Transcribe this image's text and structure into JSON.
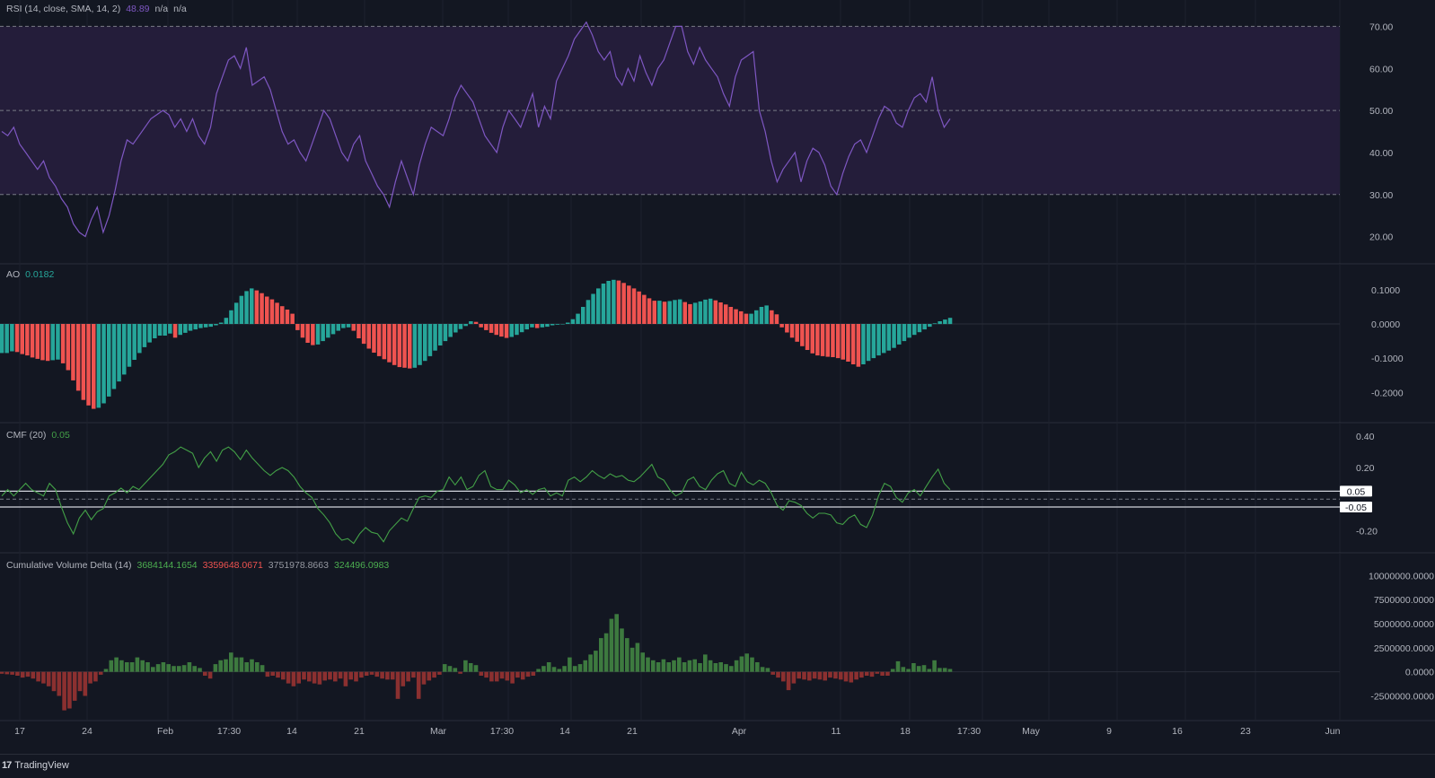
{
  "colors": {
    "background": "#131722",
    "grid": "#1e222d",
    "rsi_line": "#7e57c2",
    "rsi_band": "#241d3a",
    "ao_up": "#26a69a",
    "ao_down": "#ef5350",
    "cmf_line": "#43a047",
    "cvd_up": "#3d7a3f",
    "cvd_down": "#8b3030",
    "axis_text": "#b2b5be"
  },
  "legends": {
    "rsi": {
      "name": "RSI (14, close, SMA, 14, 2)",
      "value": "48.89",
      "v2": "n/a",
      "v3": "n/a"
    },
    "ao": {
      "name": "AO",
      "value": "0.0182"
    },
    "cmf": {
      "name": "CMF (20)",
      "value": "0.05"
    },
    "cvd": {
      "name": "Cumulative Volume Delta (14)",
      "v1": "3684144.1654",
      "v2": "3359648.0671",
      "v3": "3751978.8663",
      "v4": "324496.0983"
    }
  },
  "x_axis": {
    "labels": [
      "17",
      "24",
      "Feb",
      "17:30",
      "14",
      "21",
      "Mar",
      "17:30",
      "14",
      "21",
      "Apr",
      "11",
      "18",
      "17:30",
      "May",
      "9",
      "16",
      "23",
      "Jun"
    ]
  },
  "chart_data": [
    {
      "type": "line",
      "title": "RSI (14, close, SMA, 14, 2)",
      "ylim": [
        15,
        75
      ],
      "ticks": [
        "70.00",
        "60.00",
        "50.00",
        "40.00",
        "30.00",
        "20.00"
      ],
      "reference_levels": [
        70,
        50,
        30
      ],
      "band": [
        30,
        70
      ],
      "series": [
        {
          "values": [
            45,
            44,
            46,
            42,
            40,
            38,
            36,
            38,
            34,
            32,
            29,
            27,
            23,
            21,
            20,
            24,
            27,
            21,
            25,
            31,
            38,
            43,
            42,
            44,
            46,
            48,
            49,
            50,
            49,
            46,
            48,
            45,
            48,
            44,
            42,
            46,
            54,
            58,
            62,
            63,
            60,
            65,
            56,
            57,
            58,
            55,
            50,
            45,
            42,
            43,
            40,
            38,
            42,
            46,
            50,
            48,
            44,
            40,
            38,
            42,
            44,
            38,
            35,
            32,
            30,
            27,
            33,
            38,
            34,
            30,
            37,
            42,
            46,
            45,
            44,
            48,
            53,
            56,
            54,
            52,
            48,
            44,
            42,
            40,
            46,
            50,
            48,
            46,
            50,
            54,
            46,
            51,
            48,
            57,
            60,
            63,
            67,
            69,
            71,
            68,
            64,
            62,
            64,
            58,
            56,
            60,
            57,
            63,
            59,
            56,
            60,
            62,
            66,
            70,
            70,
            64,
            61,
            65,
            62,
            60,
            58,
            54,
            51,
            58,
            62,
            63,
            64,
            50,
            45,
            38,
            33,
            36,
            38,
            40,
            33,
            38,
            41,
            40,
            37,
            32,
            30,
            35,
            39,
            42,
            43,
            40,
            44,
            48,
            51,
            50,
            47,
            46,
            50,
            53,
            54,
            52,
            58,
            50,
            46,
            48
          ]
        }
      ]
    },
    {
      "type": "bar",
      "title": "AO",
      "ylim": [
        -0.27,
        0.16
      ],
      "ticks": [
        "0.1000",
        "0.0000",
        "-0.1000",
        "-0.2000"
      ],
      "series": [
        {
          "values": [
            -0.085,
            -0.085,
            -0.08,
            -0.082,
            -0.088,
            -0.092,
            -0.098,
            -0.102,
            -0.106,
            -0.108,
            -0.106,
            -0.104,
            -0.115,
            -0.135,
            -0.165,
            -0.195,
            -0.222,
            -0.238,
            -0.248,
            -0.245,
            -0.232,
            -0.212,
            -0.19,
            -0.168,
            -0.148,
            -0.125,
            -0.105,
            -0.085,
            -0.068,
            -0.054,
            -0.042,
            -0.034,
            -0.034,
            -0.028,
            -0.04,
            -0.032,
            -0.026,
            -0.02,
            -0.016,
            -0.012,
            -0.01,
            -0.008,
            -0.004,
            0.004,
            0.018,
            0.04,
            0.062,
            0.082,
            0.096,
            0.104,
            0.098,
            0.09,
            0.08,
            0.072,
            0.062,
            0.052,
            0.042,
            0.03,
            -0.018,
            -0.04,
            -0.055,
            -0.062,
            -0.06,
            -0.05,
            -0.04,
            -0.03,
            -0.02,
            -0.012,
            -0.01,
            -0.02,
            -0.042,
            -0.058,
            -0.072,
            -0.084,
            -0.094,
            -0.103,
            -0.112,
            -0.12,
            -0.126,
            -0.128,
            -0.13,
            -0.128,
            -0.12,
            -0.108,
            -0.094,
            -0.078,
            -0.063,
            -0.05,
            -0.038,
            -0.025,
            -0.015,
            -0.006,
            0.008,
            0.006,
            -0.01,
            -0.018,
            -0.026,
            -0.032,
            -0.037,
            -0.041,
            -0.038,
            -0.032,
            -0.024,
            -0.016,
            -0.01,
            -0.012,
            -0.01,
            -0.008,
            -0.004,
            -0.002,
            0.0,
            0.004,
            0.014,
            0.03,
            0.05,
            0.07,
            0.088,
            0.104,
            0.118,
            0.126,
            0.129,
            0.127,
            0.12,
            0.112,
            0.104,
            0.095,
            0.085,
            0.075,
            0.068,
            0.068,
            0.065,
            0.067,
            0.07,
            0.072,
            0.064,
            0.058,
            0.062,
            0.066,
            0.071,
            0.074,
            0.069,
            0.063,
            0.057,
            0.05,
            0.043,
            0.037,
            0.03,
            0.03,
            0.04,
            0.05,
            0.054,
            0.04,
            0.028,
            -0.01,
            -0.025,
            -0.04,
            -0.052,
            -0.065,
            -0.076,
            -0.086,
            -0.092,
            -0.094,
            -0.096,
            -0.097,
            -0.1,
            -0.104,
            -0.11,
            -0.118,
            -0.125,
            -0.118,
            -0.108,
            -0.1,
            -0.092,
            -0.085,
            -0.078,
            -0.07,
            -0.06,
            -0.05,
            -0.04,
            -0.032,
            -0.024,
            -0.016,
            -0.008,
            0.002,
            0.008,
            0.013,
            0.018
          ]
        }
      ]
    },
    {
      "type": "line",
      "title": "CMF (20)",
      "ylim": [
        -0.3,
        0.45
      ],
      "ticks": [
        "0.40",
        "0.20",
        "0.05",
        "-0.05",
        "-0.20"
      ],
      "reference_levels": [
        0.05,
        -0.05
      ],
      "series": [
        {
          "values": [
            0.02,
            0.06,
            0.02,
            0.06,
            0.1,
            0.06,
            0.04,
            0.02,
            0.1,
            0.06,
            -0.05,
            -0.15,
            -0.22,
            -0.12,
            -0.07,
            -0.13,
            -0.08,
            -0.06,
            0.02,
            0.04,
            0.07,
            0.04,
            0.08,
            0.06,
            0.1,
            0.14,
            0.18,
            0.22,
            0.28,
            0.3,
            0.33,
            0.31,
            0.29,
            0.2,
            0.26,
            0.3,
            0.24,
            0.31,
            0.33,
            0.3,
            0.25,
            0.31,
            0.26,
            0.22,
            0.18,
            0.15,
            0.18,
            0.2,
            0.18,
            0.14,
            0.08,
            0.04,
            0.01,
            -0.06,
            -0.1,
            -0.15,
            -0.22,
            -0.26,
            -0.25,
            -0.28,
            -0.22,
            -0.18,
            -0.21,
            -0.22,
            -0.27,
            -0.2,
            -0.16,
            -0.12,
            -0.14,
            -0.06,
            0.01,
            0.02,
            0.01,
            0.05,
            0.06,
            0.14,
            0.09,
            0.14,
            0.06,
            0.08,
            0.15,
            0.18,
            0.08,
            0.06,
            0.06,
            0.12,
            0.09,
            0.04,
            0.06,
            0.03,
            0.06,
            0.07,
            0.02,
            0.04,
            0.02,
            0.12,
            0.14,
            0.11,
            0.14,
            0.18,
            0.15,
            0.13,
            0.16,
            0.14,
            0.15,
            0.12,
            0.11,
            0.14,
            0.18,
            0.22,
            0.14,
            0.12,
            0.06,
            0.02,
            0.04,
            0.12,
            0.14,
            0.08,
            0.06,
            0.12,
            0.16,
            0.18,
            0.1,
            0.08,
            0.17,
            0.11,
            0.09,
            0.12,
            0.1,
            0.04,
            -0.04,
            -0.07,
            -0.01,
            -0.02,
            -0.04,
            -0.09,
            -0.12,
            -0.09,
            -0.09,
            -0.1,
            -0.15,
            -0.16,
            -0.12,
            -0.1,
            -0.16,
            -0.18,
            -0.1,
            0.02,
            0.1,
            0.08,
            0.01,
            -0.02,
            0.04,
            0.06,
            0.02,
            0.08,
            0.14,
            0.19,
            0.1,
            0.06
          ]
        }
      ]
    },
    {
      "type": "bar",
      "title": "Cumulative Volume Delta (14)",
      "ylim": [
        -4500000,
        11800000
      ],
      "ticks": [
        "10000000.0000",
        "7500000.0000",
        "5000000.0000",
        "2500000.0000",
        "0.0000",
        "-2500000.0000"
      ],
      "series": [
        {
          "values": [
            -200000,
            -250000,
            -300000,
            -400000,
            -600000,
            -500000,
            -700000,
            -1000000,
            -1200000,
            -1500000,
            -2000000,
            -2500000,
            -4000000,
            -3800000,
            -3000000,
            -2000000,
            -2500000,
            -1200000,
            -1000000,
            -300000,
            300000,
            1200000,
            1500000,
            1200000,
            1000000,
            1000000,
            1500000,
            1200000,
            1000000,
            500000,
            800000,
            1000000,
            800000,
            600000,
            600000,
            700000,
            1000000,
            600000,
            400000,
            -400000,
            -700000,
            800000,
            1200000,
            1300000,
            2000000,
            1500000,
            1500000,
            1000000,
            1300000,
            1000000,
            700000,
            -500000,
            -400000,
            -600000,
            -800000,
            -1200000,
            -1500000,
            -1200000,
            -800000,
            -1000000,
            -1200000,
            -1300000,
            -900000,
            -800000,
            -1000000,
            -700000,
            -1500000,
            -800000,
            -1000000,
            -600000,
            -400000,
            -300000,
            -500000,
            -700000,
            -800000,
            -800000,
            -2800000,
            -1500000,
            -1000000,
            -600000,
            -2800000,
            -1300000,
            -900000,
            -600000,
            -300000,
            800000,
            600000,
            400000,
            -200000,
            1200000,
            900000,
            700000,
            -400000,
            -600000,
            -1000000,
            -1000000,
            -700000,
            -900000,
            -1200000,
            -600000,
            -800000,
            -500000,
            -400000,
            300000,
            600000,
            1000000,
            500000,
            300000,
            600000,
            1500000,
            600000,
            800000,
            1200000,
            1800000,
            2200000,
            3500000,
            4000000,
            5500000,
            6000000,
            4500000,
            3500000,
            2500000,
            3000000,
            2000000,
            1500000,
            1200000,
            1000000,
            1300000,
            1000000,
            1200000,
            1500000,
            1000000,
            1200000,
            1300000,
            900000,
            1800000,
            1200000,
            900000,
            1000000,
            800000,
            600000,
            1200000,
            1600000,
            1900000,
            1500000,
            1000000,
            500000,
            400000,
            -300000,
            -600000,
            -1000000,
            -1900000,
            -1200000,
            -700000,
            -800000,
            -900000,
            -700000,
            -800000,
            -900000,
            -600000,
            -700000,
            -800000,
            -1000000,
            -1100000,
            -800000,
            -600000,
            -400000,
            -500000,
            -200000,
            -400000,
            -400000,
            300000,
            1100000,
            500000,
            300000,
            900000,
            600000,
            700000,
            300000,
            1200000,
            400000,
            400000,
            300000
          ]
        }
      ]
    }
  ]
}
